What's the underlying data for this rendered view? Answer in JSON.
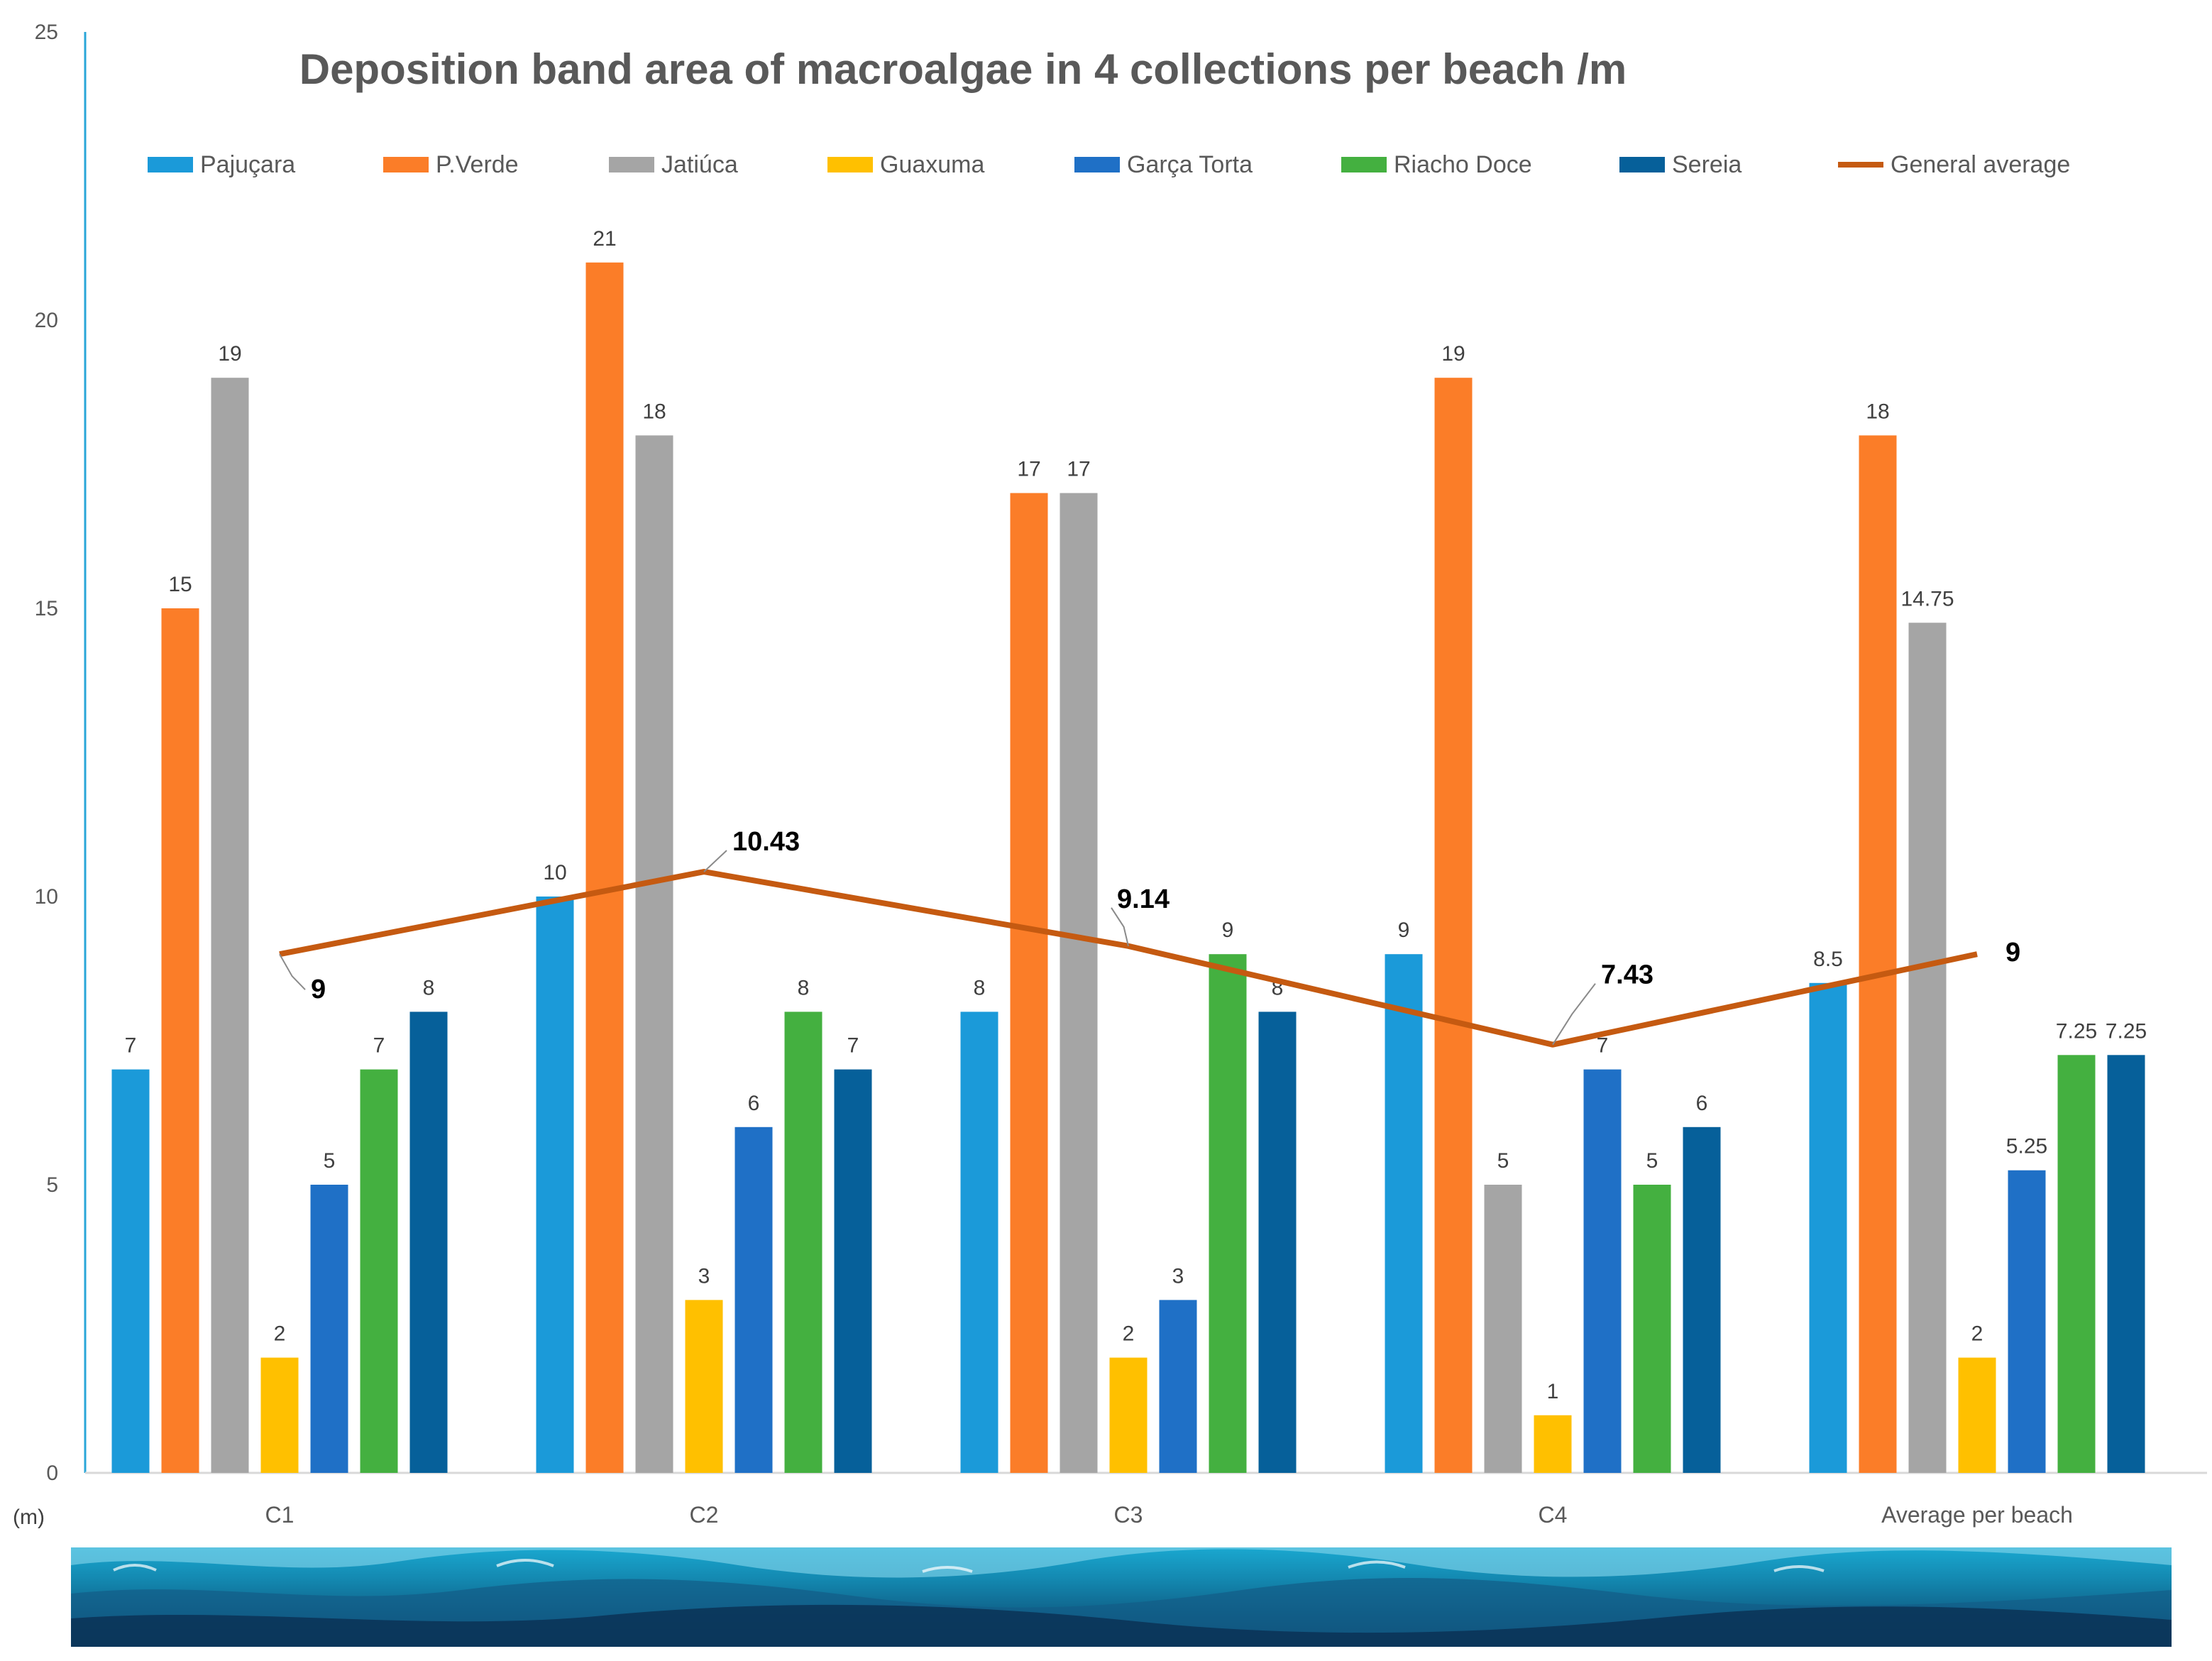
{
  "chart_data": {
    "type": "bar",
    "title": "Deposition band area of macroalgae in 4 collections per beach /m",
    "ylabel": "(m)",
    "ylim": [
      0,
      25
    ],
    "yticks": [
      0,
      5,
      10,
      15,
      20,
      25
    ],
    "categories": [
      "C1",
      "C2",
      "C3",
      "C4",
      "Average per beach"
    ],
    "series": [
      {
        "name": "Pajuçara",
        "color": "#1b9ad9",
        "values": [
          7,
          10,
          8,
          9,
          8.5
        ],
        "labels": [
          "7",
          "10",
          "8",
          "9",
          "8.5"
        ]
      },
      {
        "name": "P.Verde",
        "color": "#fb7d28",
        "values": [
          15,
          21,
          17,
          19,
          18
        ],
        "labels": [
          "15",
          "21",
          "17",
          "19",
          "18"
        ]
      },
      {
        "name": "Jatiúca",
        "color": "#a5a5a5",
        "values": [
          19,
          18,
          17,
          5,
          14.75
        ],
        "labels": [
          "19",
          "18",
          "17",
          "5",
          "14.75"
        ]
      },
      {
        "name": "Guaxuma",
        "color": "#ffc000",
        "values": [
          2,
          3,
          2,
          1,
          2
        ],
        "labels": [
          "2",
          "3",
          "2",
          "1",
          "2"
        ]
      },
      {
        "name": "Garça Torta",
        "color": "#1f70c6",
        "values": [
          5,
          6,
          3,
          7,
          5.25
        ],
        "labels": [
          "5",
          "6",
          "3",
          "7",
          "5.25"
        ]
      },
      {
        "name": "Riacho Doce",
        "color": "#44b040",
        "values": [
          7,
          8,
          9,
          5,
          7.25
        ],
        "labels": [
          "7",
          "8",
          "9",
          "5",
          "7.25"
        ]
      },
      {
        "name": "Sereia",
        "color": "#06609a",
        "values": [
          8,
          7,
          8,
          6,
          7.25
        ],
        "labels": [
          "8",
          "7",
          "8",
          "6",
          "7.25"
        ]
      }
    ],
    "line": {
      "name": "General average",
      "color": "#c55a11",
      "values": [
        9,
        10.43,
        9.14,
        7.43,
        9
      ],
      "labels": [
        "9",
        "10.43",
        "9.14",
        "7.43",
        "9"
      ]
    },
    "legend": "top",
    "grid": false
  }
}
